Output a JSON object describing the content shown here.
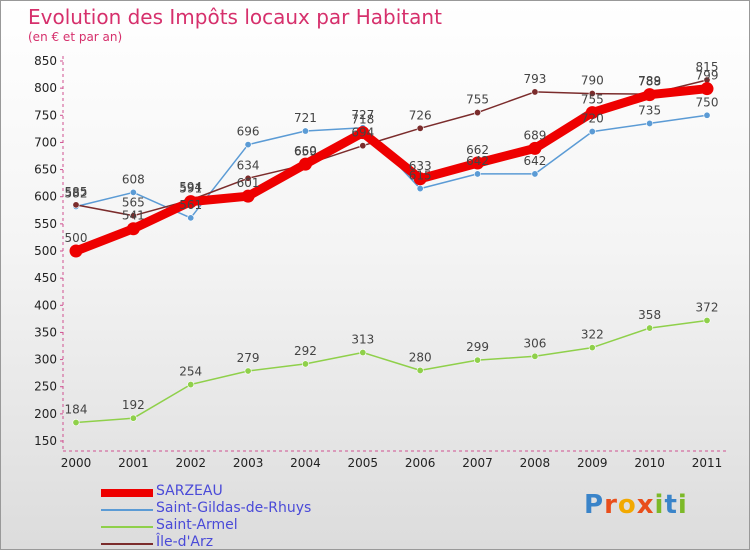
{
  "header": {
    "title": "Evolution des Impôts locaux par Habitant",
    "subtitle": "(en € et par an)"
  },
  "logo": {
    "letters": [
      "P",
      "r",
      "o",
      "x",
      "i",
      "t",
      "i"
    ],
    "colors": [
      "#3a84c9",
      "#e94e1b",
      "#f2a900",
      "#e94e1b",
      "#7cb928",
      "#3a84c9",
      "#7cb928"
    ]
  },
  "chart_data": {
    "type": "line",
    "title": "Evolution des Impôts locaux par Habitant",
    "subtitle": "(en € et par an)",
    "xlabel": "",
    "ylabel": "",
    "x": [
      "2000",
      "2001",
      "2002",
      "2003",
      "2004",
      "2005",
      "2006",
      "2007",
      "2008",
      "2009",
      "2010",
      "2011"
    ],
    "yticks": [
      150,
      200,
      250,
      300,
      350,
      400,
      450,
      500,
      550,
      600,
      650,
      700,
      750,
      800,
      850
    ],
    "ylim": [
      150,
      850
    ],
    "grid": false,
    "legend": "bottom-left",
    "series": [
      {
        "name": "SARZEAU",
        "color": "#ee0000",
        "values": [
          500,
          541,
          591,
          601,
          660,
          718,
          633,
          662,
          689,
          755,
          788,
          799
        ],
        "labels": [
          "500",
          "541",
          "591",
          "601",
          "660",
          "718",
          "633",
          "662",
          "689",
          "755",
          "788",
          "799"
        ]
      },
      {
        "name": "Saint-Gildas-de-Rhuys",
        "color": "#5b9bd5",
        "values": [
          582,
          608,
          561,
          696,
          721,
          727,
          615,
          642,
          642,
          720,
          735,
          750
        ],
        "labels": [
          "582",
          "608",
          "561",
          "696",
          "721",
          "727",
          "615",
          "642",
          "642",
          "720",
          "735",
          "750"
        ]
      },
      {
        "name": "Saint-Armel",
        "color": "#8fd04a",
        "values": [
          184,
          192,
          254,
          279,
          292,
          313,
          280,
          299,
          306,
          322,
          358,
          372
        ],
        "labels": [
          "184",
          "192",
          "254",
          "279",
          "292",
          "313",
          "280",
          "299",
          "306",
          "322",
          "358",
          "372"
        ]
      },
      {
        "name": "Île-d'Arz",
        "color": "#7b2c2c",
        "values": [
          585,
          565,
          594,
          634,
          659,
          694,
          726,
          755,
          793,
          790,
          789,
          815
        ],
        "labels": [
          "585",
          "565",
          "594",
          "634",
          "659",
          "694",
          "726",
          "755",
          "793",
          "790",
          "789",
          "815"
        ]
      }
    ]
  }
}
